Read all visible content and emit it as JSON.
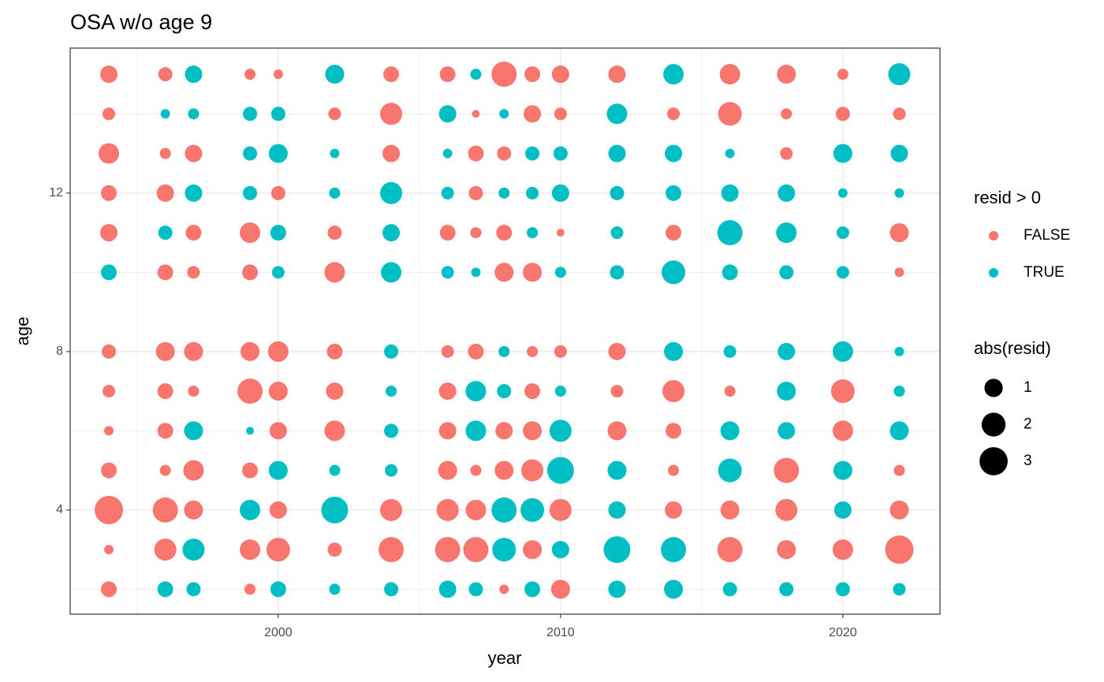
{
  "chart_data": {
    "type": "scatter",
    "title": "OSA w/o age 9",
    "x_label": "year",
    "y_label": "age",
    "xlim": [
      1992.63,
      2023.44
    ],
    "ylim": [
      1.37,
      15.66
    ],
    "xticks": [
      2000,
      2010,
      2020
    ],
    "yticks": [
      4,
      8,
      12
    ],
    "xminor": [
      1995,
      2005,
      2015
    ],
    "yminor": [
      2,
      6,
      10,
      14
    ],
    "grid": true,
    "legend_title": "resid > 0",
    "size_legend": {
      "title": "abs(resid)",
      "values": [
        1,
        2,
        3
      ]
    },
    "series": [
      {
        "name": "FALSE",
        "color": "#f8766d",
        "x": [
          1994,
          1996,
          1999,
          2000,
          2004,
          2006,
          2008,
          2009,
          2010,
          2012,
          2016,
          2018,
          2020,
          1994,
          2002,
          2004,
          2007,
          2009,
          2010,
          2014,
          2016,
          2018,
          2020,
          2022,
          1994,
          1996,
          1997,
          2004,
          2007,
          2008,
          2018,
          1994,
          1996,
          2000,
          2007,
          1994,
          1997,
          1999,
          2002,
          2006,
          2007,
          2008,
          2010,
          2014,
          2022,
          1996,
          1997,
          1999,
          2002,
          2008,
          2009,
          2022,
          1994,
          1996,
          1997,
          1999,
          2000,
          2002,
          2006,
          2007,
          2009,
          2010,
          2012,
          1994,
          1996,
          1997,
          1999,
          2000,
          2002,
          2006,
          2009,
          2012,
          2014,
          2016,
          2020,
          1994,
          1996,
          2000,
          2002,
          2006,
          2008,
          2009,
          2012,
          2014,
          2020,
          1994,
          1996,
          1997,
          1999,
          2006,
          2007,
          2008,
          2009,
          2014,
          2018,
          2022,
          1994,
          1996,
          1997,
          2000,
          2004,
          2006,
          2007,
          2010,
          2014,
          2016,
          2018,
          2022,
          1994,
          1996,
          1999,
          2000,
          2002,
          2004,
          2006,
          2007,
          2009,
          2016,
          2018,
          2020,
          2022,
          1994,
          1999,
          2008,
          2010
        ],
        "y": [
          15,
          15,
          15,
          15,
          15,
          15,
          15,
          15,
          15,
          15,
          15,
          15,
          15,
          14,
          14,
          14,
          14,
          14,
          14,
          14,
          14,
          14,
          14,
          14,
          13,
          13,
          13,
          13,
          13,
          13,
          13,
          12,
          12,
          12,
          12,
          11,
          11,
          11,
          11,
          11,
          11,
          11,
          11,
          11,
          11,
          10,
          10,
          10,
          10,
          10,
          10,
          10,
          8,
          8,
          8,
          8,
          8,
          8,
          8,
          8,
          8,
          8,
          8,
          7,
          7,
          7,
          7,
          7,
          7,
          7,
          7,
          7,
          7,
          7,
          7,
          6,
          6,
          6,
          6,
          6,
          6,
          6,
          6,
          6,
          6,
          5,
          5,
          5,
          5,
          5,
          5,
          5,
          5,
          5,
          5,
          5,
          4,
          4,
          4,
          4,
          4,
          4,
          4,
          4,
          4,
          4,
          4,
          4,
          3,
          3,
          3,
          3,
          3,
          3,
          3,
          3,
          3,
          3,
          3,
          3,
          3,
          2,
          2,
          2,
          2
        ],
        "sizes": [
          0.87,
          0.49,
          0.22,
          0.12,
          0.66,
          0.66,
          2.28,
          0.66,
          0.87,
          0.87,
          1.35,
          1.1,
          0.22,
          0.34,
          0.34,
          1.64,
          0.05,
          0.87,
          0.34,
          0.34,
          1.95,
          0.22,
          0.49,
          0.34,
          1.35,
          0.22,
          0.87,
          0.87,
          0.66,
          0.49,
          0.34,
          0.66,
          0.87,
          0.49,
          0.49,
          0.87,
          0.66,
          1.35,
          0.49,
          0.66,
          0.22,
          0.66,
          0.05,
          0.66,
          1.1,
          0.66,
          0.34,
          0.66,
          1.35,
          1.1,
          1.1,
          0.12,
          0.49,
          1.1,
          1.1,
          1.1,
          1.35,
          0.66,
          0.34,
          0.66,
          0.22,
          0.34,
          0.87,
          0.34,
          0.66,
          0.22,
          2.28,
          1.1,
          0.87,
          0.87,
          0.66,
          0.34,
          1.64,
          0.22,
          1.95,
          0.12,
          0.66,
          0.87,
          1.35,
          0.87,
          0.87,
          1.1,
          1.1,
          0.66,
          1.35,
          0.66,
          0.22,
          1.35,
          0.66,
          1.1,
          0.22,
          1.1,
          1.64,
          0.22,
          2.28,
          0.22,
          3.04,
          2.28,
          1.1,
          0.87,
          1.64,
          1.64,
          1.35,
          1.64,
          0.87,
          1.1,
          1.64,
          1.1,
          0.12,
          1.64,
          1.35,
          1.95,
          0.49,
          2.28,
          2.28,
          2.28,
          1.1,
          2.28,
          1.1,
          1.35,
          3.04,
          0.66,
          0.22,
          0.12,
          1.1
        ]
      },
      {
        "name": "TRUE",
        "color": "#00bfc4",
        "x": [
          1997,
          2002,
          2007,
          2014,
          2022,
          1996,
          1997,
          1999,
          2000,
          2006,
          2008,
          2012,
          1999,
          2000,
          2002,
          2006,
          2009,
          2010,
          2012,
          2014,
          2016,
          2020,
          2022,
          1997,
          1999,
          2002,
          2004,
          2006,
          2008,
          2009,
          2010,
          2012,
          2014,
          2016,
          2018,
          2020,
          2022,
          1996,
          2000,
          2004,
          2009,
          2012,
          2016,
          2018,
          2020,
          1994,
          2000,
          2004,
          2006,
          2007,
          2010,
          2012,
          2014,
          2016,
          2018,
          2020,
          2004,
          2008,
          2014,
          2016,
          2018,
          2020,
          2022,
          2004,
          2007,
          2008,
          2010,
          2018,
          2022,
          1997,
          1999,
          2004,
          2007,
          2010,
          2016,
          2018,
          2022,
          2000,
          2002,
          2004,
          2010,
          2012,
          2016,
          2020,
          1999,
          2002,
          2008,
          2009,
          2012,
          2020,
          1997,
          2008,
          2010,
          2012,
          2014,
          1996,
          1997,
          2000,
          2002,
          2004,
          2006,
          2007,
          2009,
          2012,
          2014,
          2016,
          2018,
          2020,
          2022
        ],
        "y": [
          15,
          15,
          15,
          15,
          15,
          14,
          14,
          14,
          14,
          14,
          14,
          14,
          13,
          13,
          13,
          13,
          13,
          13,
          13,
          13,
          13,
          13,
          13,
          12,
          12,
          12,
          12,
          12,
          12,
          12,
          12,
          12,
          12,
          12,
          12,
          12,
          12,
          11,
          11,
          11,
          11,
          11,
          11,
          11,
          11,
          10,
          10,
          10,
          10,
          10,
          10,
          10,
          10,
          10,
          10,
          10,
          8,
          8,
          8,
          8,
          8,
          8,
          8,
          7,
          7,
          7,
          7,
          7,
          7,
          6,
          6,
          6,
          6,
          6,
          6,
          6,
          6,
          5,
          5,
          5,
          5,
          5,
          5,
          5,
          4,
          4,
          4,
          4,
          4,
          4,
          3,
          3,
          3,
          3,
          3,
          2,
          2,
          2,
          2,
          2,
          2,
          2,
          2,
          2,
          2,
          2,
          2,
          2,
          2
        ],
        "sizes": [
          0.87,
          1.1,
          0.22,
          1.35,
          1.64,
          0.12,
          0.22,
          0.49,
          0.49,
          0.87,
          0.12,
          1.35,
          0.49,
          1.1,
          0.12,
          0.12,
          0.49,
          0.49,
          0.87,
          0.87,
          0.12,
          1.1,
          0.87,
          0.87,
          0.49,
          0.22,
          1.64,
          0.34,
          0.22,
          0.34,
          0.87,
          0.49,
          0.66,
          0.87,
          0.87,
          0.12,
          0.12,
          0.49,
          0.66,
          0.87,
          0.22,
          0.34,
          2.28,
          1.35,
          0.34,
          0.66,
          0.34,
          1.35,
          0.34,
          0.12,
          0.22,
          0.49,
          1.95,
          0.66,
          0.49,
          0.34,
          0.49,
          0.22,
          1.1,
          0.34,
          0.87,
          1.35,
          0.12,
          0.22,
          1.35,
          0.49,
          0.22,
          1.1,
          0.22,
          1.1,
          0.05,
          0.49,
          1.35,
          1.64,
          1.1,
          0.87,
          1.1,
          1.1,
          0.22,
          0.34,
          2.65,
          1.1,
          1.95,
          1.1,
          1.35,
          2.65,
          2.28,
          1.95,
          0.87,
          0.87,
          1.64,
          1.95,
          0.87,
          2.65,
          2.28,
          0.66,
          0.49,
          0.66,
          0.22,
          0.49,
          0.87,
          0.49,
          0.66,
          0.87,
          1.1,
          0.49,
          0.49,
          0.49,
          0.34
        ]
      }
    ]
  }
}
